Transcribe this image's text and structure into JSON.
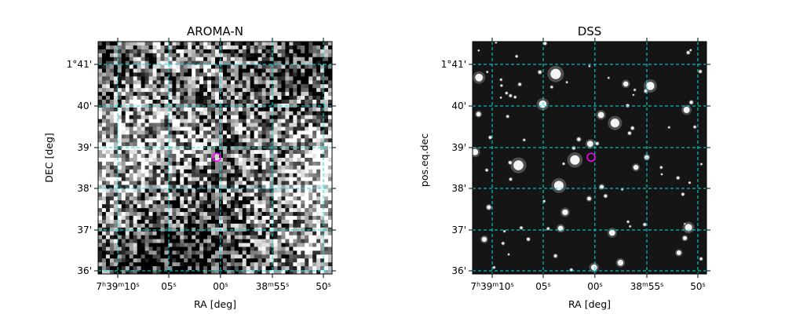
{
  "chart_data": [
    {
      "type": "image",
      "title": "AROMA-N",
      "xlabel": "RA [deg]",
      "ylabel": "DEC [deg]",
      "x_ticks": [
        "7h39m10s",
        "05s",
        "00s",
        "38m55s",
        "50s"
      ],
      "y_ticks": [
        "1°41'",
        "40'",
        "39'",
        "38'",
        "37'",
        "36'"
      ],
      "colormap": "grayscale",
      "texture": "noisy",
      "grid": true,
      "grid_color": "#00e5e5",
      "marker": {
        "shape": "circle",
        "color": "#ff00ff",
        "ra_label": "00s",
        "dec_approx_arcmin": 38.8
      }
    },
    {
      "type": "image",
      "title": "DSS",
      "xlabel": "RA [deg]",
      "ylabel": "pos.eq.dec",
      "x_ticks": [
        "7h39m10s",
        "05s",
        "00s",
        "38m55s",
        "50s"
      ],
      "y_ticks": [
        "1°41'",
        "40'",
        "39'",
        "38'",
        "37'",
        "36'"
      ],
      "colormap": "grayscale",
      "texture": "starfield",
      "grid": true,
      "grid_color": "#00e5e5",
      "marker": {
        "shape": "circle",
        "color": "#ff00ff",
        "ra_label": "00s",
        "dec_approx_arcmin": 38.8
      }
    }
  ]
}
